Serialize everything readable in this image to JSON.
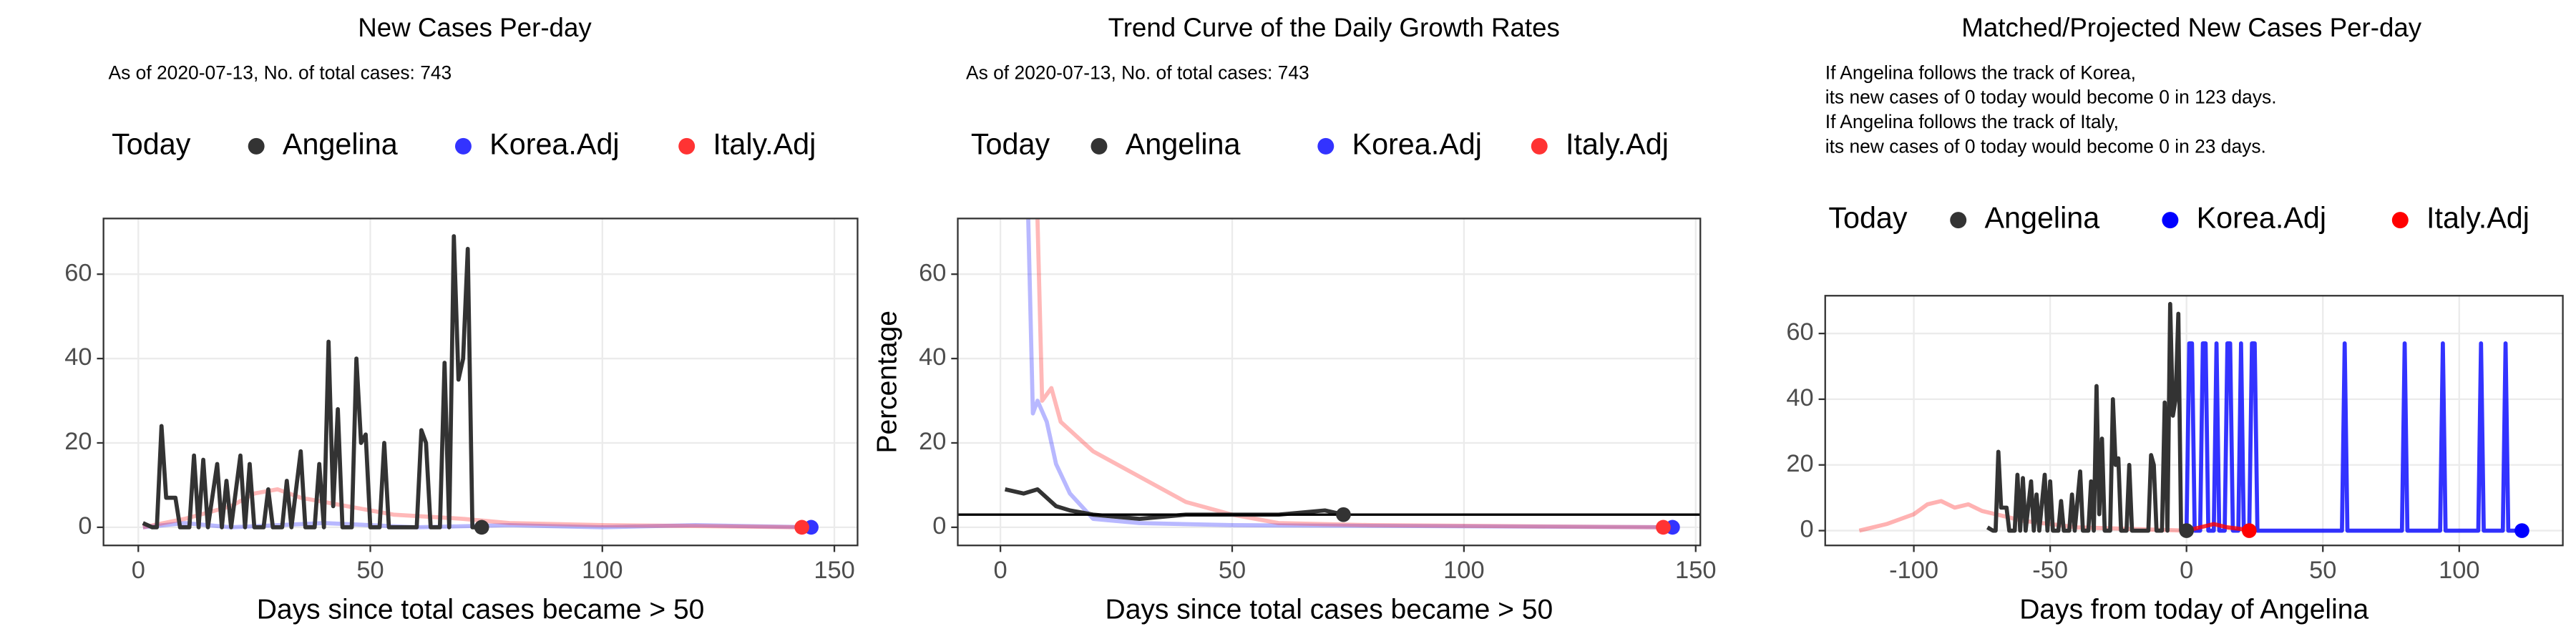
{
  "chart_data": [
    {
      "type": "line",
      "title": "New Cases Per-day",
      "subtitle": "As of 2020-07-13, No. of total cases: 743",
      "legend_title": "Today",
      "x_label": "Days since total cases became > 50",
      "xlim": [
        -7.5,
        155
      ],
      "ylim": [
        -4.3,
        73.2
      ],
      "xticks": [
        0,
        50,
        100,
        150
      ],
      "yticks": [
        0,
        20,
        40,
        60
      ],
      "grid": true,
      "series": [
        {
          "name": "Angelina",
          "color": "#333333",
          "opacity": 1,
          "x": [
            1,
            3,
            4,
            5,
            6,
            8,
            9,
            11,
            12,
            13,
            14,
            15,
            17,
            18,
            19,
            20,
            22,
            23,
            24,
            25,
            27,
            28,
            29,
            31,
            32,
            33,
            35,
            36,
            38,
            39,
            40,
            41,
            42,
            43,
            44,
            46,
            47,
            48,
            49,
            50,
            52,
            53,
            54,
            56,
            58,
            60,
            61,
            62,
            63,
            65,
            66,
            67,
            68,
            69,
            70,
            71,
            72,
            74
          ],
          "values": [
            1,
            0,
            0,
            24,
            7,
            7,
            0,
            0,
            17,
            0,
            16,
            0,
            15,
            0,
            11,
            0,
            17,
            0,
            15,
            0,
            0,
            9,
            0,
            0,
            11,
            0,
            18,
            0,
            0,
            15,
            0,
            44,
            5,
            28,
            0,
            0,
            40,
            20,
            22,
            0,
            0,
            20,
            0,
            0,
            0,
            0,
            23,
            20,
            0,
            0,
            39,
            0,
            69,
            35,
            40,
            66,
            0,
            0
          ],
          "today_x": 74,
          "today_value": 0
        },
        {
          "name": "Korea.Adj",
          "color": "#3333ff",
          "opacity": 0.35,
          "x": [
            1,
            10,
            20,
            40,
            60,
            80,
            100,
            120,
            145
          ],
          "values": [
            0,
            1,
            0,
            1,
            0,
            0.5,
            0,
            0.5,
            0
          ],
          "today_x": 145,
          "today_value": 0
        },
        {
          "name": "Italy.Adj",
          "color": "#ff3333",
          "opacity": 0.35,
          "x": [
            1,
            10,
            20,
            25,
            30,
            35,
            45,
            55,
            70,
            80,
            100,
            120,
            143
          ],
          "values": [
            0,
            2,
            5,
            8,
            9,
            7,
            5,
            3,
            2,
            1,
            0.5,
            0.3,
            0
          ],
          "today_x": 143,
          "today_value": 0
        }
      ]
    },
    {
      "type": "line",
      "title": "Trend Curve of the Daily Growth Rates",
      "subtitle": "As of 2020-07-13, No. of total cases: 743",
      "legend_title": "Today",
      "x_label": "Days since total cases became > 50",
      "y_label": "Percentage",
      "xlim": [
        -9.2,
        151
      ],
      "ylim": [
        -4.3,
        73.2
      ],
      "xticks": [
        0,
        50,
        100,
        150
      ],
      "yticks": [
        0,
        20,
        40,
        60
      ],
      "grid": true,
      "hline": 3,
      "series": [
        {
          "name": "Angelina",
          "color": "#333333",
          "opacity": 1,
          "x": [
            1,
            5,
            8,
            12,
            15,
            20,
            30,
            40,
            50,
            60,
            70,
            74
          ],
          "values": [
            9,
            8,
            9,
            5,
            4,
            3,
            2,
            3,
            3,
            3,
            4,
            3
          ],
          "today_x": 74,
          "today_value": 3
        },
        {
          "name": "Korea.Adj",
          "color": "#3333ff",
          "opacity": 0.35,
          "x": [
            6,
            7,
            8,
            10,
            12,
            15,
            20,
            30,
            50,
            145
          ],
          "values": [
            73,
            27,
            30,
            25,
            15,
            8,
            2,
            1,
            0.5,
            0
          ],
          "today_x": 145,
          "today_value": 0
        },
        {
          "name": "Italy.Adj",
          "color": "#ff3333",
          "opacity": 0.35,
          "x": [
            8,
            9,
            11,
            13,
            20,
            30,
            40,
            50,
            60,
            80,
            143
          ],
          "values": [
            73,
            30,
            33,
            25,
            18,
            12,
            6,
            3,
            1,
            0.5,
            0
          ],
          "today_x": 143,
          "today_value": 0
        }
      ]
    },
    {
      "type": "line",
      "title": "Matched/Projected New Cases Per-day",
      "notes": [
        "If Angelina follows the track of Korea,",
        "its new cases of 0 today would become 0 in 123 days.",
        "If Angelina follows the track of Italy,",
        "its new cases of 0 today would become 0 in 23 days."
      ],
      "legend_title": "Today",
      "x_label": "Days from today of Angelina",
      "xlim": [
        -132.5,
        138
      ],
      "ylim": [
        -4.5,
        71.5
      ],
      "xticks": [
        -100,
        -50,
        0,
        50,
        100
      ],
      "yticks": [
        0,
        20,
        40,
        60
      ],
      "grid": true,
      "series": [
        {
          "color": "#ff0000",
          "opacity": 0.3,
          "x": [
            -120,
            -110,
            -100,
            -95,
            -90,
            -85,
            -80,
            -75,
            -70,
            -60,
            -50,
            -40,
            -20,
            0
          ],
          "values": [
            0,
            2,
            5,
            8,
            9,
            7,
            8,
            6,
            5,
            3,
            2,
            1,
            0.5,
            0
          ]
        },
        {
          "name": "Angelina",
          "color": "#333333",
          "opacity": 1,
          "x": [
            -73,
            -71,
            -70,
            -69,
            -68,
            -66,
            -65,
            -63,
            -62,
            -61,
            -60,
            -59,
            -57,
            -56,
            -55,
            -54,
            -52,
            -51,
            -50,
            -49,
            -47,
            -46,
            -45,
            -43,
            -42,
            -41,
            -39,
            -38,
            -36,
            -35,
            -34,
            -33,
            -32,
            -31,
            -30,
            -28,
            -27,
            -26,
            -25,
            -24,
            -22,
            -21,
            -20,
            -18,
            -16,
            -14,
            -13,
            -12,
            -11,
            -9,
            -8,
            -7,
            -6,
            -5,
            -4,
            -3,
            -2,
            0
          ],
          "values": [
            1,
            0,
            0,
            24,
            7,
            7,
            0,
            0,
            17,
            0,
            16,
            0,
            15,
            0,
            11,
            0,
            17,
            0,
            15,
            0,
            0,
            9,
            0,
            0,
            11,
            0,
            18,
            0,
            0,
            15,
            0,
            44,
            5,
            28,
            0,
            0,
            40,
            20,
            22,
            0,
            0,
            20,
            0,
            0,
            0,
            0,
            23,
            20,
            0,
            0,
            39,
            0,
            69,
            35,
            40,
            66,
            0,
            0
          ],
          "today_x": 0,
          "today_value": 0
        },
        {
          "name": "Korea.Adj",
          "color": "#0000ff",
          "opacity": 0.8,
          "x": [
            0,
            1,
            2,
            3,
            5,
            6,
            7,
            8,
            10,
            11,
            12,
            14,
            15,
            16,
            17,
            19,
            20,
            21,
            23,
            24,
            25,
            26,
            57,
            58,
            59,
            79,
            80,
            81,
            93,
            94,
            95,
            107,
            108,
            109,
            116,
            117,
            118,
            123
          ],
          "values": [
            0,
            57,
            57,
            0,
            0,
            57,
            57,
            0,
            0,
            57,
            0,
            0,
            57,
            57,
            0,
            0,
            57,
            0,
            0,
            57,
            57,
            0,
            0,
            57,
            0,
            0,
            57,
            0,
            0,
            57,
            0,
            0,
            57,
            0,
            0,
            57,
            0,
            0
          ],
          "today_x": 123,
          "today_value": 0
        },
        {
          "name": "Italy.Adj",
          "color": "#ff0000",
          "opacity": 0.8,
          "x": [
            0,
            5,
            10,
            15,
            20,
            23
          ],
          "values": [
            0,
            1,
            2,
            1,
            0.5,
            0
          ],
          "today_x": 23,
          "today_value": 0
        }
      ]
    }
  ]
}
